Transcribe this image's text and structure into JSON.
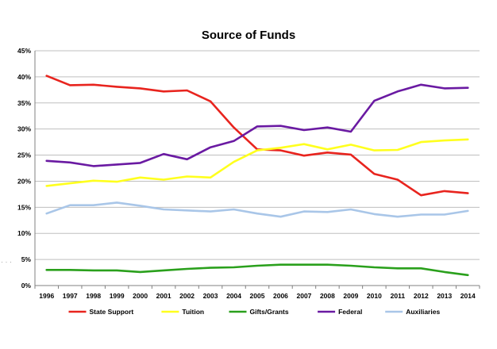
{
  "chart_data": {
    "type": "line",
    "title": "Source of Funds",
    "xlabel": "",
    "ylabel": "",
    "x": [
      "1996",
      "1997",
      "1998",
      "1999",
      "2000",
      "2001",
      "2002",
      "2003",
      "2004",
      "2005",
      "2006",
      "2007",
      "2008",
      "2009",
      "2010",
      "2011",
      "2012",
      "2013",
      "2014"
    ],
    "ylim": [
      0,
      45
    ],
    "yticks": [
      0,
      5,
      10,
      15,
      20,
      25,
      30,
      35,
      40,
      45
    ],
    "ytick_suffix": "%",
    "grid": true,
    "legend": "bottom",
    "series": [
      {
        "name": "State Support",
        "color": "#e8241e",
        "values": [
          40.2,
          38.4,
          38.5,
          38.1,
          37.8,
          37.2,
          37.4,
          35.3,
          30.3,
          26.1,
          25.9,
          24.9,
          25.5,
          25.1,
          21.4,
          20.3,
          17.3,
          18.1,
          17.7
        ]
      },
      {
        "name": "Tuition",
        "color": "#ffff1e",
        "values": [
          19.1,
          19.6,
          20.1,
          19.9,
          20.7,
          20.3,
          20.9,
          20.7,
          23.7,
          25.9,
          26.4,
          27.1,
          26.1,
          27.0,
          25.9,
          26.0,
          27.5,
          27.8,
          28.0
        ]
      },
      {
        "name": "Gifts/Grants",
        "color": "#2aa01c",
        "values": [
          3.0,
          3.0,
          2.9,
          2.9,
          2.6,
          2.9,
          3.2,
          3.4,
          3.5,
          3.8,
          4.0,
          4.0,
          4.0,
          3.8,
          3.5,
          3.3,
          3.3,
          2.6,
          2.0
        ]
      },
      {
        "name": "Federal",
        "color": "#6a1aa2",
        "values": [
          23.9,
          23.6,
          22.9,
          23.2,
          23.5,
          25.2,
          24.2,
          26.5,
          27.7,
          30.5,
          30.6,
          29.8,
          30.3,
          29.5,
          35.4,
          37.2,
          38.5,
          37.8,
          37.9
        ]
      },
      {
        "name": "Auxiliaries",
        "color": "#a9c6e8",
        "values": [
          13.8,
          15.4,
          15.4,
          15.9,
          15.3,
          14.6,
          14.4,
          14.2,
          14.6,
          13.8,
          13.2,
          14.2,
          14.1,
          14.6,
          13.7,
          13.2,
          13.6,
          13.6,
          14.3
        ]
      }
    ]
  }
}
